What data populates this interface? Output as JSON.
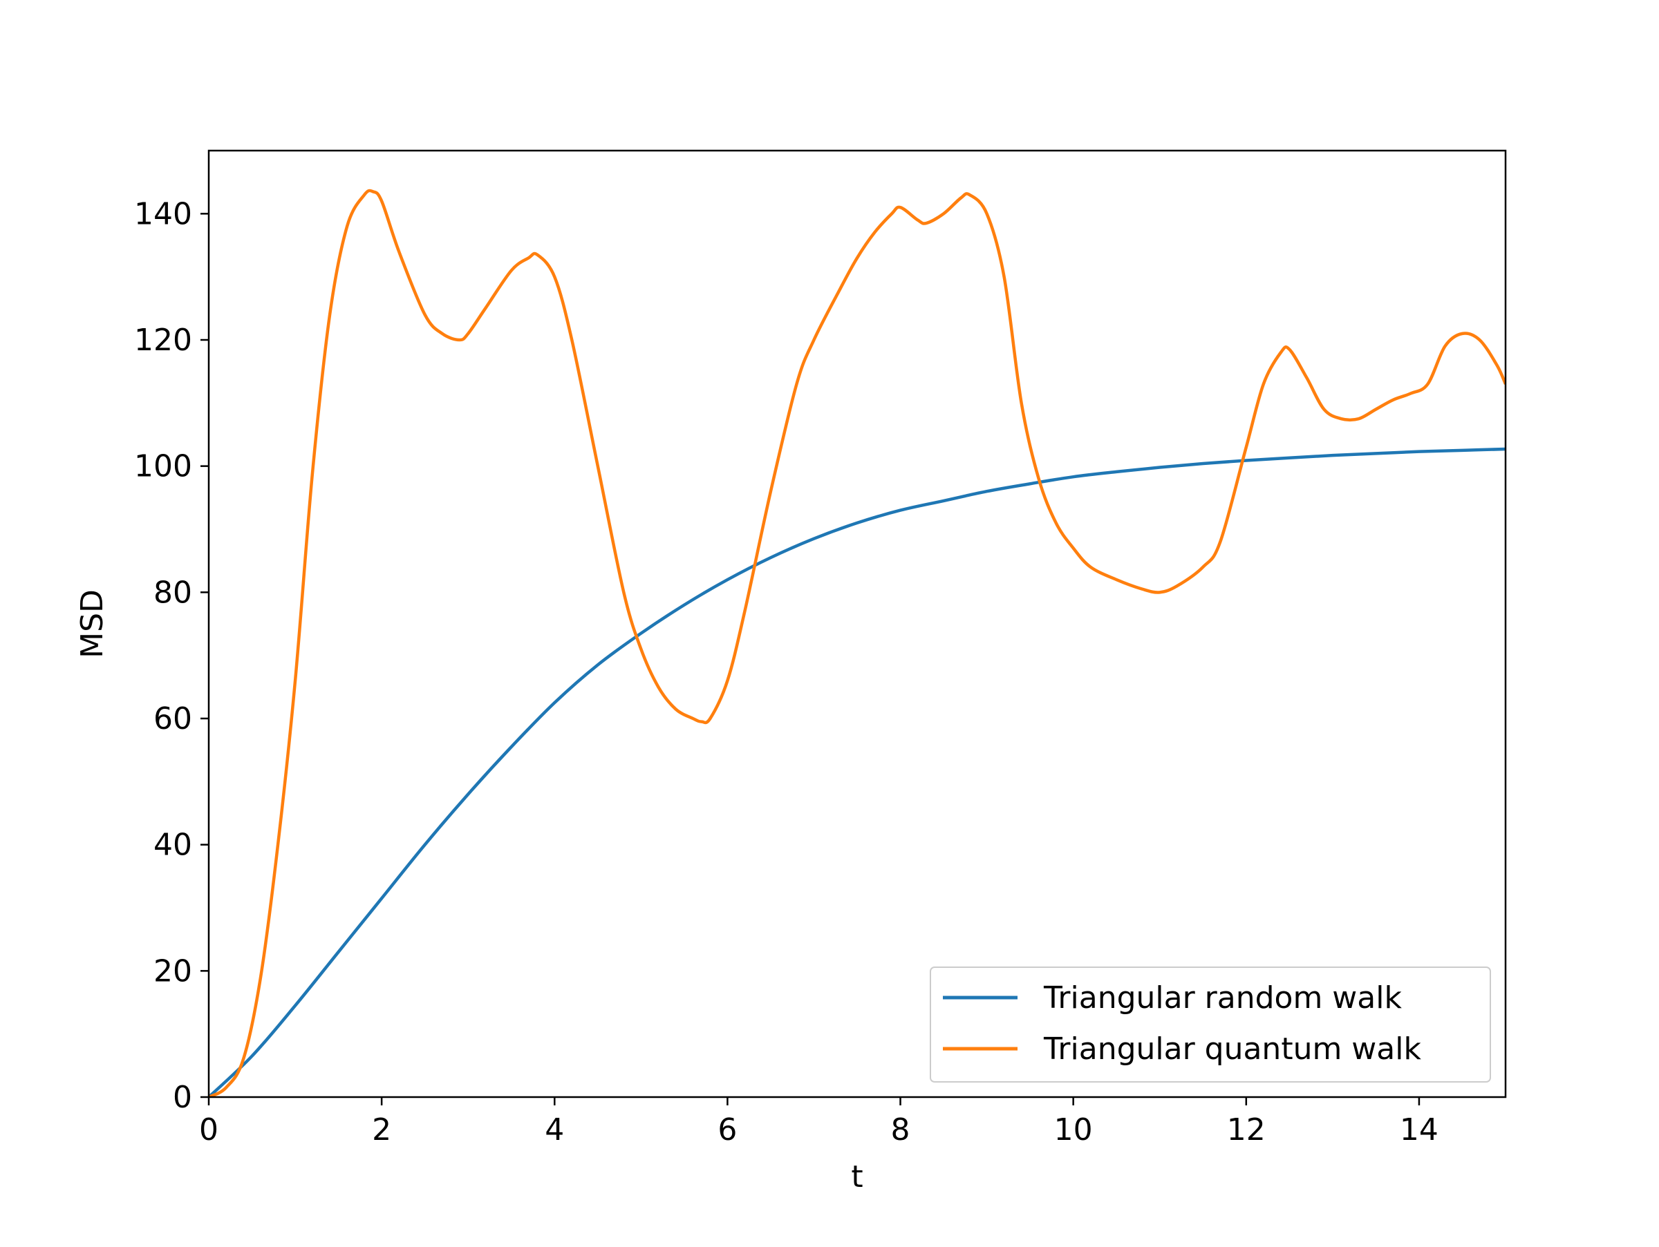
{
  "chart_data": {
    "type": "line",
    "title": "",
    "xlabel": "t",
    "ylabel": "MSD",
    "xlim": [
      0,
      15
    ],
    "ylim": [
      0,
      150
    ],
    "xticks": [
      0,
      2,
      4,
      6,
      8,
      10,
      12,
      14
    ],
    "yticks": [
      0,
      20,
      40,
      60,
      80,
      100,
      120,
      140
    ],
    "grid": false,
    "legend_position": "lower-right",
    "series": [
      {
        "name": "Triangular random walk",
        "color": "#1f77b4",
        "x": [
          0,
          0.5,
          1,
          1.5,
          2,
          2.5,
          3,
          3.5,
          4,
          4.5,
          5,
          5.5,
          6,
          6.5,
          7,
          7.5,
          8,
          8.5,
          9,
          9.5,
          10,
          10.5,
          11,
          11.5,
          12,
          12.5,
          13,
          13.5,
          14,
          14.5,
          15
        ],
        "y": [
          0,
          6.5,
          14.5,
          23,
          31.5,
          40,
          48,
          55.5,
          62.5,
          68.5,
          73.5,
          78,
          82,
          85.5,
          88.5,
          91,
          93,
          94.5,
          96,
          97.2,
          98.3,
          99.1,
          99.8,
          100.4,
          100.9,
          101.3,
          101.7,
          102,
          102.3,
          102.5,
          102.7
        ]
      },
      {
        "name": "Triangular quantum walk",
        "color": "#ff7f0e",
        "x": [
          0,
          0.2,
          0.4,
          0.6,
          0.8,
          1.0,
          1.2,
          1.4,
          1.6,
          1.8,
          1.9,
          2.0,
          2.2,
          2.5,
          2.7,
          2.9,
          3.0,
          3.2,
          3.5,
          3.7,
          3.8,
          4.0,
          4.2,
          4.5,
          4.8,
          5.0,
          5.2,
          5.4,
          5.6,
          5.7,
          5.8,
          6.0,
          6.2,
          6.5,
          6.8,
          7.0,
          7.3,
          7.5,
          7.7,
          7.9,
          8.0,
          8.2,
          8.3,
          8.5,
          8.7,
          8.8,
          9.0,
          9.2,
          9.4,
          9.6,
          9.8,
          10.0,
          10.2,
          10.5,
          10.8,
          11.0,
          11.2,
          11.5,
          11.7,
          12.0,
          12.2,
          12.4,
          12.5,
          12.7,
          12.9,
          13.1,
          13.3,
          13.5,
          13.7,
          13.9,
          14.1,
          14.3,
          14.5,
          14.7,
          14.9,
          15.0
        ],
        "y": [
          0,
          1.5,
          6,
          19,
          40,
          66,
          99,
          124,
          138,
          143,
          143.5,
          142,
          134,
          124,
          121,
          120,
          121,
          125,
          131,
          133,
          133.5,
          130,
          120,
          100,
          80,
          71,
          65,
          61.5,
          60,
          59.5,
          60,
          66,
          77,
          96,
          113,
          120,
          128,
          133,
          137,
          140,
          141,
          139,
          138.5,
          140,
          142.5,
          143,
          140,
          130,
          110,
          98,
          91,
          87,
          84,
          82,
          80.5,
          80,
          81,
          84,
          88,
          103,
          113,
          118,
          118.5,
          114,
          109,
          107.5,
          107.5,
          109,
          110.5,
          111.5,
          113,
          119,
          121,
          120,
          116,
          113
        ]
      }
    ]
  }
}
